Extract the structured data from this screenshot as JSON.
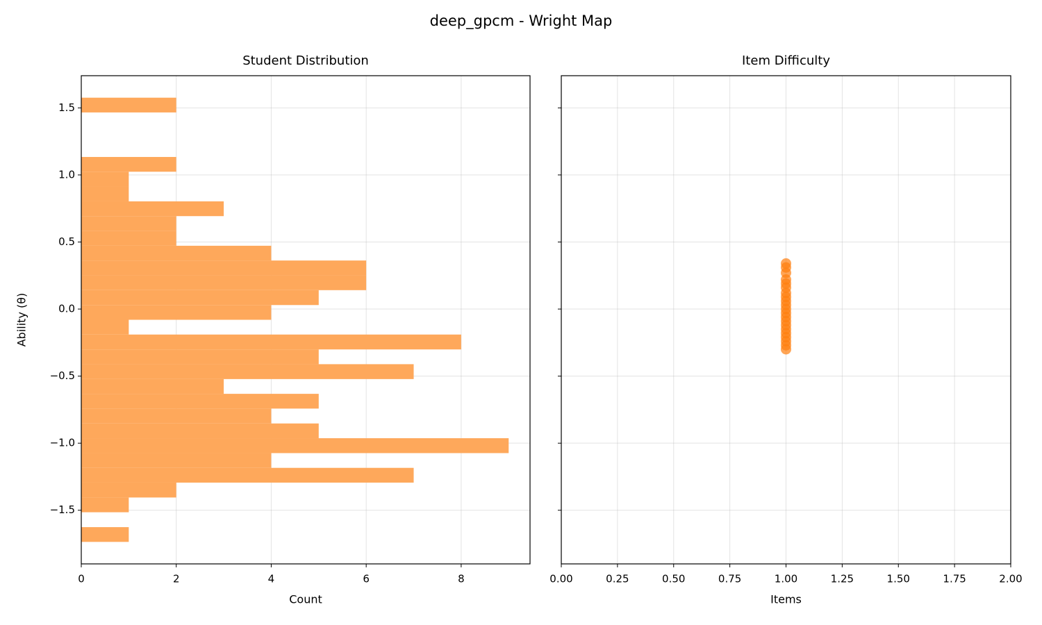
{
  "title": "deep_gpcm - Wright Map",
  "chart_data": [
    {
      "type": "histogram",
      "orientation": "horizontal",
      "title": "Student Distribution",
      "xlabel": "Count",
      "ylabel": "Ability (θ)",
      "bins": [
        -1.736,
        -1.626,
        -1.515,
        -1.405,
        -1.294,
        -1.184,
        -1.074,
        -0.963,
        -0.853,
        -0.742,
        -0.632,
        -0.522,
        -0.411,
        -0.301,
        -0.19,
        -0.08,
        0.03,
        0.141,
        0.251,
        0.362,
        0.472,
        0.582,
        0.693,
        0.803,
        0.914,
        1.024,
        1.134,
        1.245,
        1.355,
        1.466,
        1.576
      ],
      "values": [
        1,
        0,
        1,
        2,
        7,
        4,
        9,
        5,
        4,
        5,
        3,
        7,
        5,
        8,
        1,
        4,
        5,
        6,
        6,
        4,
        2,
        2,
        3,
        1,
        1,
        2,
        0,
        0,
        0,
        2
      ],
      "color": "#fea85b",
      "xlim": [
        0,
        9.45
      ],
      "ylim": [
        -1.9,
        1.74
      ],
      "xticks": [
        0,
        2,
        4,
        6,
        8
      ],
      "yticks": [
        {
          "value": -1.5,
          "label": "−1.5"
        },
        {
          "value": -1.0,
          "label": "−1.0"
        },
        {
          "value": -0.5,
          "label": "−0.5"
        },
        {
          "value": 0,
          "label": "0.0"
        },
        0.5,
        {
          "value": 1,
          "label": "1.0"
        },
        1.5
      ],
      "grid": true
    },
    {
      "type": "scatter",
      "title": "Item Difficulty",
      "xlabel": "Items",
      "x": [
        1,
        1,
        1,
        1,
        1,
        1,
        1,
        1,
        1,
        1,
        1,
        1,
        1,
        1,
        1,
        1,
        1,
        1,
        1,
        1,
        1
      ],
      "y": [
        0.34,
        0.31,
        0.27,
        0.22,
        0.19,
        0.16,
        0.12,
        0.09,
        0.06,
        0.03,
        0.0,
        -0.03,
        -0.06,
        -0.09,
        -0.12,
        -0.15,
        -0.18,
        -0.21,
        -0.24,
        -0.27,
        -0.3
      ],
      "color": "#ff7f0e",
      "xlim": [
        0,
        2
      ],
      "ylim": [
        -1.9,
        1.74
      ],
      "xticks": [
        {
          "value": 0,
          "label": "0.00"
        },
        {
          "value": 0.25,
          "label": "0.25"
        },
        {
          "value": 0.5,
          "label": "0.50"
        },
        {
          "value": 0.75,
          "label": "0.75"
        },
        {
          "value": 1,
          "label": "1.00"
        },
        {
          "value": 1.25,
          "label": "1.25"
        },
        {
          "value": 1.5,
          "label": "1.50"
        },
        {
          "value": 1.75,
          "label": "1.75"
        },
        {
          "value": 2,
          "label": "2.00"
        }
      ],
      "yticks": [
        -1.5,
        -1,
        -0.5,
        0,
        0.5,
        1,
        1.5
      ],
      "ytick_labels": false,
      "grid": true
    }
  ]
}
